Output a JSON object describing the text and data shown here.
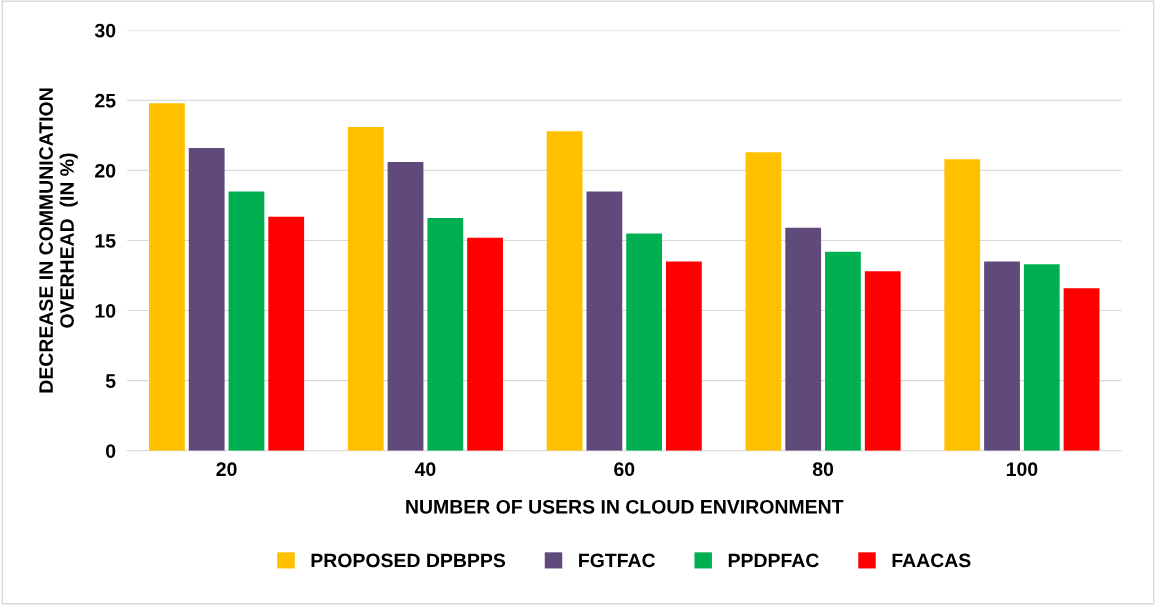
{
  "chart_data": {
    "type": "bar",
    "xlabel": "NUMBER OF USERS IN CLOUD ENVIRONMENT",
    "ylabel": "DECREASE IN COMMUNICATION\nOVERHEAD  (IN %)",
    "categories": [
      "20",
      "40",
      "60",
      "80",
      "100"
    ],
    "series": [
      {
        "name": "PROPOSED DPBPPS",
        "color": "#ffc000",
        "values": [
          24.8,
          23.1,
          22.8,
          21.3,
          20.8
        ]
      },
      {
        "name": "FGTFAC",
        "color": "#604a7b",
        "values": [
          21.6,
          20.6,
          18.5,
          15.9,
          13.5
        ]
      },
      {
        "name": "PPDPFAC",
        "color": "#00b050",
        "values": [
          18.5,
          16.6,
          15.5,
          14.2,
          13.3
        ]
      },
      {
        "name": "FAACAS",
        "color": "#ff0000",
        "values": [
          16.7,
          15.2,
          13.5,
          12.8,
          11.6
        ]
      }
    ],
    "ylim": [
      0,
      30
    ],
    "yticks": [
      0,
      5,
      10,
      15,
      20,
      25,
      30
    ],
    "grid": "y",
    "legend": "bottom"
  }
}
